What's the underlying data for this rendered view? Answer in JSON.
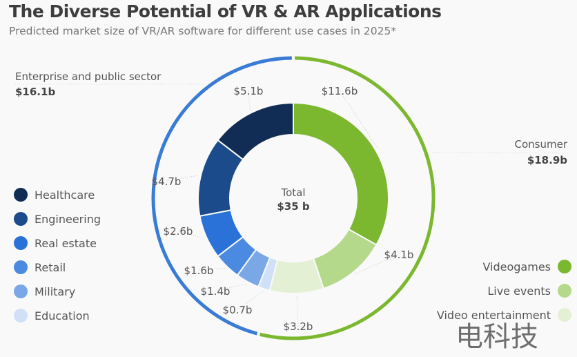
{
  "header": {
    "title": "The Diverse Potential of VR & AR Applications",
    "subtitle": "Predicted market size of VR/AR software for different use cases in 2025*"
  },
  "chart_data": {
    "type": "pie",
    "variant": "nested-donut",
    "title": "The Diverse Potential of VR & AR Applications",
    "subtitle": "Predicted market size of VR/AR software for different use cases in 2025*",
    "unit": "billion USD",
    "total": 35,
    "total_label": "Total",
    "total_display": "$35 b",
    "slices": [
      {
        "name": "Videogames",
        "value": 11.6,
        "label": "$11.6b",
        "group": "Consumer",
        "color": "#7cb82f"
      },
      {
        "name": "Live events",
        "value": 4.1,
        "label": "$4.1b",
        "group": "Consumer",
        "color": "#b5d98a"
      },
      {
        "name": "Video entertainment",
        "value": 3.2,
        "label": "$3.2b",
        "group": "Consumer",
        "color": "#e4f0d4"
      },
      {
        "name": "Education",
        "value": 0.7,
        "label": "$0.7b",
        "group": "Enterprise and public sector",
        "color": "#cfe0f7"
      },
      {
        "name": "Military",
        "value": 1.4,
        "label": "$1.4b",
        "group": "Enterprise and public sector",
        "color": "#7aa8e6"
      },
      {
        "name": "Retail",
        "value": 1.6,
        "label": "$1.6b",
        "group": "Enterprise and public sector",
        "color": "#4a8ae0"
      },
      {
        "name": "Real estate",
        "value": 2.6,
        "label": "$2.6b",
        "group": "Enterprise and public sector",
        "color": "#2a72d8"
      },
      {
        "name": "Engineering",
        "value": 4.7,
        "label": "$4.7b",
        "group": "Enterprise and public sector",
        "color": "#1c4b8c"
      },
      {
        "name": "Healthcare",
        "value": 5.1,
        "label": "$5.1b",
        "group": "Enterprise and public sector",
        "color": "#112c55"
      }
    ],
    "groups": [
      {
        "name": "Consumer",
        "value": 18.9,
        "label": "$18.9b",
        "color": "#7cb82f"
      },
      {
        "name": "Enterprise and public sector",
        "value": 16.1,
        "label": "$16.1b",
        "color": "#3a7bd5"
      }
    ],
    "legend": {
      "left": [
        "Healthcare",
        "Engineering",
        "Real estate",
        "Retail",
        "Military",
        "Education"
      ],
      "right": [
        "Videogames",
        "Live events",
        "Video entertainment"
      ]
    }
  },
  "legend_left": [
    {
      "label": "Healthcare",
      "color": "#112c55"
    },
    {
      "label": "Engineering",
      "color": "#1c4b8c"
    },
    {
      "label": "Real estate",
      "color": "#2a72d8"
    },
    {
      "label": "Retail",
      "color": "#4a8ae0"
    },
    {
      "label": "Military",
      "color": "#7aa8e6"
    },
    {
      "label": "Education",
      "color": "#cfe0f7"
    }
  ],
  "legend_right": [
    {
      "label": "Videogames",
      "color": "#7cb82f"
    },
    {
      "label": "Live events",
      "color": "#b5d98a"
    },
    {
      "label": "Video entertainment",
      "color": "#e4f0d4"
    }
  ],
  "watermark": "电科技"
}
